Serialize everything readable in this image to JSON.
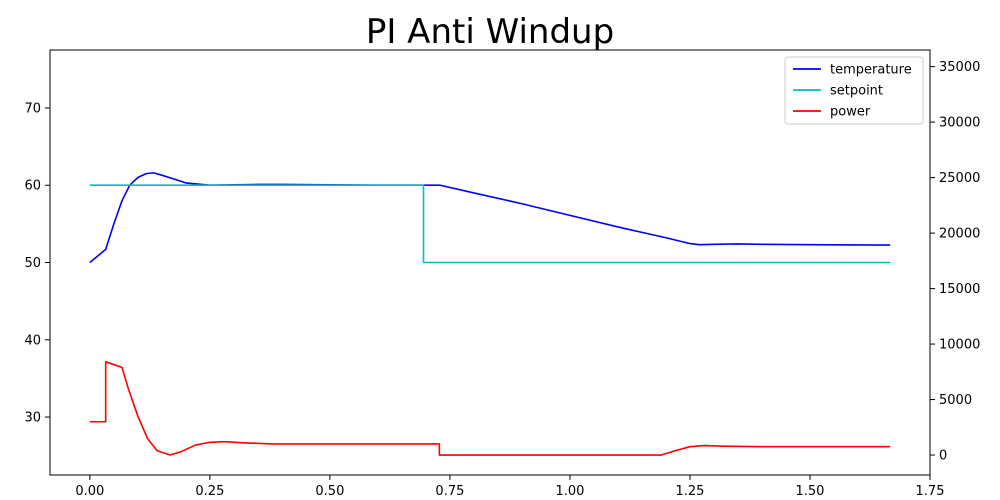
{
  "chart_data": {
    "type": "line",
    "title": "PI Anti Windup",
    "xlabel": "",
    "ylabel": "",
    "ylabel_right": "",
    "xlim": [
      -0.083,
      1.75
    ],
    "ylim": [
      22.5,
      77.5
    ],
    "ylim_right": [
      -1800,
      36500
    ],
    "x_ticks": [
      0.0,
      0.25,
      0.5,
      0.75,
      1.0,
      1.25,
      1.5,
      1.75
    ],
    "x_tick_labels": [
      "0.00",
      "0.25",
      "0.50",
      "0.75",
      "1.00",
      "1.25",
      "1.50",
      "1.75"
    ],
    "y_ticks": [
      30,
      40,
      50,
      60,
      70
    ],
    "y_tick_labels": [
      "30",
      "40",
      "50",
      "60",
      "70"
    ],
    "y_right_ticks": [
      0,
      5000,
      10000,
      15000,
      20000,
      25000,
      30000,
      35000
    ],
    "y_right_tick_labels": [
      "0",
      "5000",
      "10000",
      "15000",
      "20000",
      "25000",
      "30000",
      "35000"
    ],
    "grid": false,
    "legend_position": "top-right",
    "series": [
      {
        "name": "temperature",
        "color": "#0000ff",
        "axis": "left",
        "points": [
          [
            0.0,
            50.0
          ],
          [
            0.033,
            51.7
          ],
          [
            0.05,
            55.0
          ],
          [
            0.067,
            58.0
          ],
          [
            0.083,
            60.0
          ],
          [
            0.1,
            61.0
          ],
          [
            0.117,
            61.5
          ],
          [
            0.133,
            61.6
          ],
          [
            0.15,
            61.3
          ],
          [
            0.175,
            60.8
          ],
          [
            0.2,
            60.3
          ],
          [
            0.25,
            60.0
          ],
          [
            0.3,
            60.05
          ],
          [
            0.35,
            60.1
          ],
          [
            0.4,
            60.1
          ],
          [
            0.5,
            60.05
          ],
          [
            0.6,
            60.0
          ],
          [
            0.7,
            60.0
          ],
          [
            0.73,
            60.0
          ],
          [
            0.8,
            59.0
          ],
          [
            0.9,
            57.6
          ],
          [
            1.0,
            56.1
          ],
          [
            1.1,
            54.6
          ],
          [
            1.2,
            53.2
          ],
          [
            1.233,
            52.7
          ],
          [
            1.25,
            52.45
          ],
          [
            1.27,
            52.3
          ],
          [
            1.3,
            52.35
          ],
          [
            1.35,
            52.4
          ],
          [
            1.4,
            52.35
          ],
          [
            1.5,
            52.3
          ],
          [
            1.6,
            52.27
          ],
          [
            1.667,
            52.25
          ]
        ]
      },
      {
        "name": "setpoint",
        "color": "#00bfbf",
        "axis": "left",
        "points": [
          [
            0.0,
            60.0
          ],
          [
            0.695,
            60.0
          ],
          [
            0.695,
            50.0
          ],
          [
            1.667,
            50.0
          ]
        ]
      },
      {
        "name": "power",
        "color": "#ff0000",
        "axis": "right",
        "points": [
          [
            0.0,
            3000
          ],
          [
            0.033,
            3000
          ],
          [
            0.033,
            8400
          ],
          [
            0.067,
            7900
          ],
          [
            0.08,
            6000
          ],
          [
            0.1,
            3500
          ],
          [
            0.12,
            1500
          ],
          [
            0.14,
            400
          ],
          [
            0.167,
            0
          ],
          [
            0.19,
            300
          ],
          [
            0.22,
            900
          ],
          [
            0.25,
            1150
          ],
          [
            0.28,
            1200
          ],
          [
            0.32,
            1100
          ],
          [
            0.38,
            1000
          ],
          [
            0.5,
            1000
          ],
          [
            0.6,
            1000
          ],
          [
            0.728,
            1000
          ],
          [
            0.728,
            0
          ],
          [
            0.8,
            0
          ],
          [
            0.9,
            0
          ],
          [
            1.0,
            0
          ],
          [
            1.1,
            0
          ],
          [
            1.19,
            0
          ],
          [
            1.22,
            400
          ],
          [
            1.25,
            750
          ],
          [
            1.28,
            850
          ],
          [
            1.32,
            800
          ],
          [
            1.4,
            750
          ],
          [
            1.5,
            750
          ],
          [
            1.6,
            750
          ],
          [
            1.667,
            750
          ]
        ]
      }
    ]
  }
}
